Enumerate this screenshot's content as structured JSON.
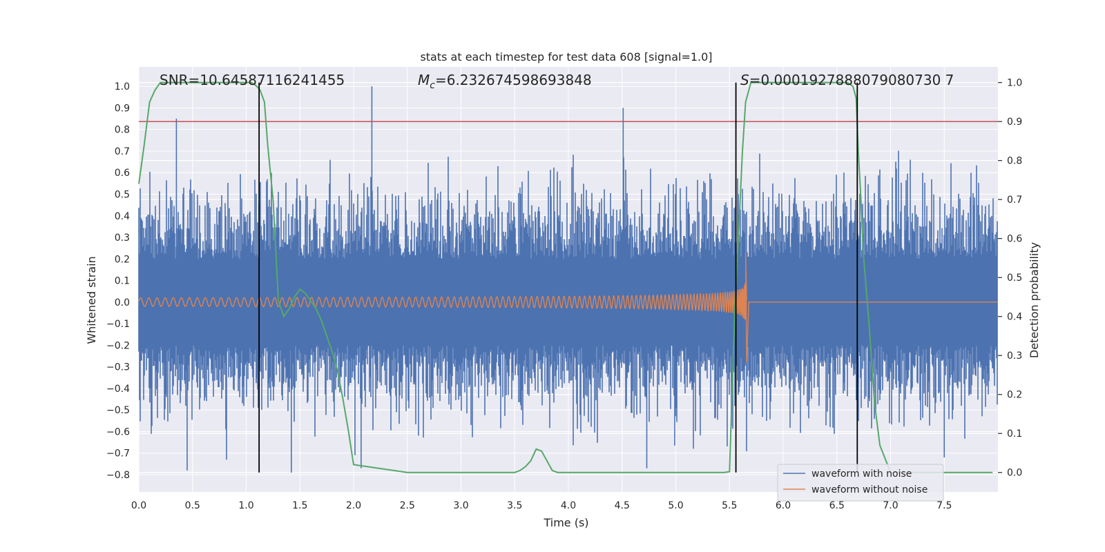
{
  "chart_data": {
    "type": "line",
    "title": "stats at each timestep for test data 608 [signal=1.0]",
    "xlabel": "Time (s)",
    "ylabel": "Whitened strain",
    "y2label": "Detection probability",
    "xlim": [
      0.0,
      8.0
    ],
    "ylim": [
      -0.88,
      1.09
    ],
    "y2lim": [
      -0.05,
      1.04
    ],
    "x_ticks": [
      0.0,
      0.5,
      1.0,
      1.5,
      2.0,
      2.5,
      3.0,
      3.5,
      4.0,
      4.5,
      5.0,
      5.5,
      6.0,
      6.5,
      7.0,
      7.5
    ],
    "y_ticks": [
      -0.8,
      -0.7,
      -0.6,
      -0.5,
      -0.4,
      -0.3,
      -0.2,
      -0.1,
      0.0,
      0.1,
      0.2,
      0.3,
      0.4,
      0.5,
      0.6,
      0.7,
      0.8,
      0.9,
      1.0
    ],
    "y2_ticks": [
      0.0,
      0.1,
      0.2,
      0.3,
      0.4,
      0.5,
      0.6,
      0.7,
      0.8,
      0.9,
      1.0
    ],
    "grid": true,
    "legend_placement": "lower-right",
    "annotations": {
      "snr_text": "SNR=10.64587116241455",
      "mc_symbol": "M",
      "mc_subscript": "c",
      "mc_value": "=6.232674598693848",
      "s_symbol": "S",
      "s_value": "=0.0001927888079080730 7"
    },
    "threshold_line": {
      "y2": 0.9,
      "color": "#c44e52"
    },
    "vertical_markers": [
      1.12,
      5.56,
      6.69
    ],
    "series": [
      {
        "name": "waveform with noise",
        "color": "#4c72b0",
        "noise_band": {
          "x_start": 0.0,
          "x_end": 8.0,
          "typical_amplitude": 0.35,
          "max": 1.0,
          "min": -0.79
        },
        "notable_peaks": [
          {
            "x": 0.35,
            "y": 0.85
          },
          {
            "x": 1.42,
            "y": -0.79
          },
          {
            "x": 2.17,
            "y": 1.0
          },
          {
            "x": 2.07,
            "y": -0.77
          },
          {
            "x": 4.51,
            "y": 0.9
          },
          {
            "x": 4.73,
            "y": -0.77
          },
          {
            "x": 0.45,
            "y": -0.78
          },
          {
            "x": 7.5,
            "y": -0.72
          }
        ]
      },
      {
        "name": "waveform without noise",
        "color": "#dd8452",
        "chirp": {
          "x_start": 0.0,
          "x_merger": 5.66,
          "start_amplitude": 0.02,
          "max_amplitude": 0.23,
          "min_amplitude": -0.28
        }
      },
      {
        "name": "detection probability",
        "color": "#55a868",
        "axis": "right",
        "x": [
          0.0,
          0.05,
          0.1,
          0.15,
          0.2,
          0.3,
          0.5,
          0.7,
          0.9,
          1.0,
          1.05,
          1.1,
          1.13,
          1.17,
          1.2,
          1.25,
          1.3,
          1.35,
          1.4,
          1.45,
          1.5,
          1.55,
          1.6,
          1.65,
          1.7,
          1.75,
          1.8,
          1.85,
          1.9,
          1.95,
          2.0,
          2.5,
          3.0,
          3.2,
          3.4,
          3.5,
          3.55,
          3.6,
          3.65,
          3.7,
          3.75,
          3.8,
          3.85,
          3.9,
          4.0,
          4.5,
          5.0,
          5.45,
          5.5,
          5.55,
          5.6,
          5.62,
          5.65,
          5.7,
          5.8,
          6.0,
          6.3,
          6.6,
          6.65,
          6.68,
          6.7,
          6.72,
          6.75,
          6.8,
          6.85,
          6.9,
          7.0,
          7.5,
          7.95
        ],
        "values": [
          0.74,
          0.84,
          0.95,
          0.98,
          1.0,
          1.0,
          1.0,
          1.0,
          1.0,
          1.0,
          1.0,
          0.99,
          0.98,
          0.95,
          0.84,
          0.7,
          0.44,
          0.4,
          0.42,
          0.45,
          0.47,
          0.46,
          0.44,
          0.42,
          0.39,
          0.35,
          0.31,
          0.26,
          0.19,
          0.11,
          0.02,
          0.0,
          0.0,
          0.0,
          0.0,
          0.0,
          0.005,
          0.015,
          0.03,
          0.06,
          0.055,
          0.03,
          0.005,
          0.0,
          0.0,
          0.0,
          0.0,
          0.0,
          0.002,
          0.42,
          0.7,
          0.82,
          0.95,
          1.0,
          1.0,
          1.0,
          1.0,
          1.0,
          0.99,
          0.96,
          0.82,
          0.72,
          0.55,
          0.38,
          0.18,
          0.07,
          0.0,
          0.0,
          0.0
        ]
      }
    ]
  },
  "legend": {
    "items": [
      {
        "label": "waveform with noise",
        "color": "#4c72b0"
      },
      {
        "label": "waveform without noise",
        "color": "#dd8452"
      }
    ]
  }
}
